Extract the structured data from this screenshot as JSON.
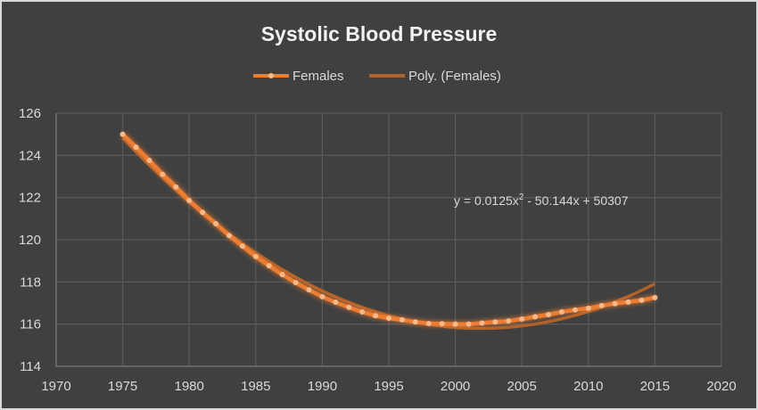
{
  "chart_data": {
    "type": "line",
    "title": "Systolic Blood Pressure",
    "xlabel": "",
    "ylabel": "",
    "xlim": [
      1970,
      2020
    ],
    "ylim": [
      114,
      126
    ],
    "x_ticks": [
      "1970",
      "1975",
      "1980",
      "1985",
      "1990",
      "1995",
      "2000",
      "2005",
      "2010",
      "2015",
      "2020"
    ],
    "y_ticks": [
      "114",
      "116",
      "118",
      "120",
      "122",
      "124",
      "126"
    ],
    "grid": true,
    "legend_position": "top",
    "series": [
      {
        "name": "Females",
        "color": "#ed7d31",
        "x": [
          1975,
          1976,
          1977,
          1978,
          1979,
          1980,
          1981,
          1982,
          1983,
          1984,
          1985,
          1986,
          1987,
          1988,
          1989,
          1990,
          1991,
          1992,
          1993,
          1994,
          1995,
          1996,
          1997,
          1998,
          1999,
          2000,
          2001,
          2002,
          2003,
          2004,
          2005,
          2006,
          2007,
          2008,
          2009,
          2010,
          2011,
          2012,
          2013,
          2014,
          2015
        ],
        "values": [
          125.0,
          124.39,
          123.76,
          123.1,
          122.5,
          121.86,
          121.3,
          120.76,
          120.2,
          119.7,
          119.2,
          118.77,
          118.35,
          117.97,
          117.63,
          117.3,
          117.04,
          116.8,
          116.58,
          116.4,
          116.28,
          116.2,
          116.1,
          116.03,
          116.02,
          116.0,
          116.0,
          116.05,
          116.1,
          116.15,
          116.24,
          116.35,
          116.45,
          116.58,
          116.67,
          116.75,
          116.88,
          116.97,
          117.05,
          117.13,
          117.26
        ]
      }
    ],
    "trendline": {
      "name": "Poly. (Females)",
      "type": "polynomial",
      "order": 2,
      "color": "#b0612a",
      "equation": "y = 0.0125x² - 50.144x + 50307",
      "equation_parts": {
        "prefix": "y = 0.0125x",
        "sup": "2",
        "suffix": " - 50.144x + 50307"
      }
    }
  }
}
